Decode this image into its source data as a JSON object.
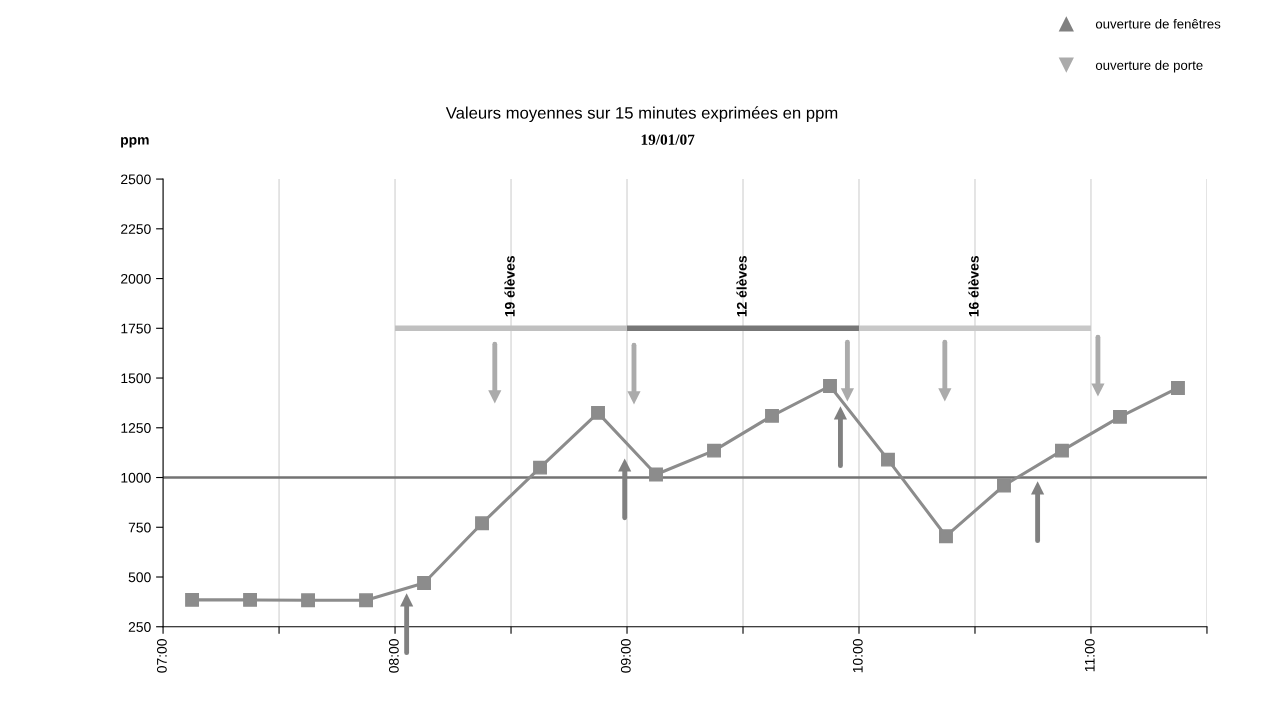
{
  "chart_data": {
    "type": "line",
    "title": "Valeurs moyennes sur 15 minutes exprimées en ppm",
    "subtitle": "19/01/07",
    "ylabel": "ppm",
    "xlim": [
      7,
      11.5
    ],
    "xticks": [
      {
        "value": 7,
        "label": "07:00"
      },
      {
        "value": 7.5,
        "label": null
      },
      {
        "value": 8,
        "label": "08:00"
      },
      {
        "value": 8.5,
        "label": null
      },
      {
        "value": 9,
        "label": "09:00"
      },
      {
        "value": 9.5,
        "label": null
      },
      {
        "value": 10,
        "label": "10:00"
      },
      {
        "value": 10.5,
        "label": null
      },
      {
        "value": 11,
        "label": "11:00"
      },
      {
        "value": 11.5,
        "label": null
      }
    ],
    "ylim": [
      250,
      2500
    ],
    "yticks": [
      250,
      500,
      750,
      1000,
      1250,
      1500,
      1750,
      2000,
      2250,
      2500
    ],
    "grid": "x",
    "marker": "square",
    "line_style": "solid",
    "legend": "top right",
    "ref_lines": [
      {
        "axis": "y",
        "value": 1000,
        "color": "#737373"
      }
    ],
    "series": [
      {
        "color": "#8c8c8c",
        "x": [
          7.125,
          7.375,
          7.625,
          7.875,
          8.125,
          8.375,
          8.625,
          8.875,
          9.125,
          9.375,
          9.625,
          9.875,
          10.125,
          10.375,
          10.625,
          10.875,
          11.125,
          11.375
        ],
        "values": [
          385,
          385,
          383,
          383,
          470,
          770,
          1050,
          1325,
          1015,
          1135,
          1310,
          1460,
          1090,
          705,
          960,
          1135,
          1305,
          1450
        ]
      },
      {
        "type": "line",
        "name": "19 élèves",
        "color": "#c0c0c0",
        "marker": "none",
        "x": [
          8,
          9
        ],
        "values": [
          1750,
          1750
        ]
      },
      {
        "type": "line",
        "name": "12 élèves",
        "color": "#777777",
        "marker": "none",
        "x": [
          9,
          10
        ],
        "values": [
          1750,
          1750
        ]
      },
      {
        "type": "line",
        "name": "16 élèves",
        "color": "#c8c8c8",
        "marker": "none",
        "x": [
          10,
          11
        ],
        "values": [
          1750,
          1750
        ]
      },
      {
        "type": "scatter",
        "name": "ouverture de fenêtres",
        "color": "#808080",
        "marker": "triangle",
        "x": [
          8.05,
          8.99,
          9.92,
          10.77
        ],
        "values": [
          385,
          1063,
          1325,
          948
        ]
      },
      {
        "type": "scatter",
        "name": "ouverture de porte",
        "color": "#ababab",
        "marker": "triangle",
        "x": [
          8.43,
          9.03,
          9.95,
          10.37,
          11.03
        ],
        "values": [
          1405,
          1400,
          1415,
          1415,
          1440
        ]
      }
    ]
  }
}
